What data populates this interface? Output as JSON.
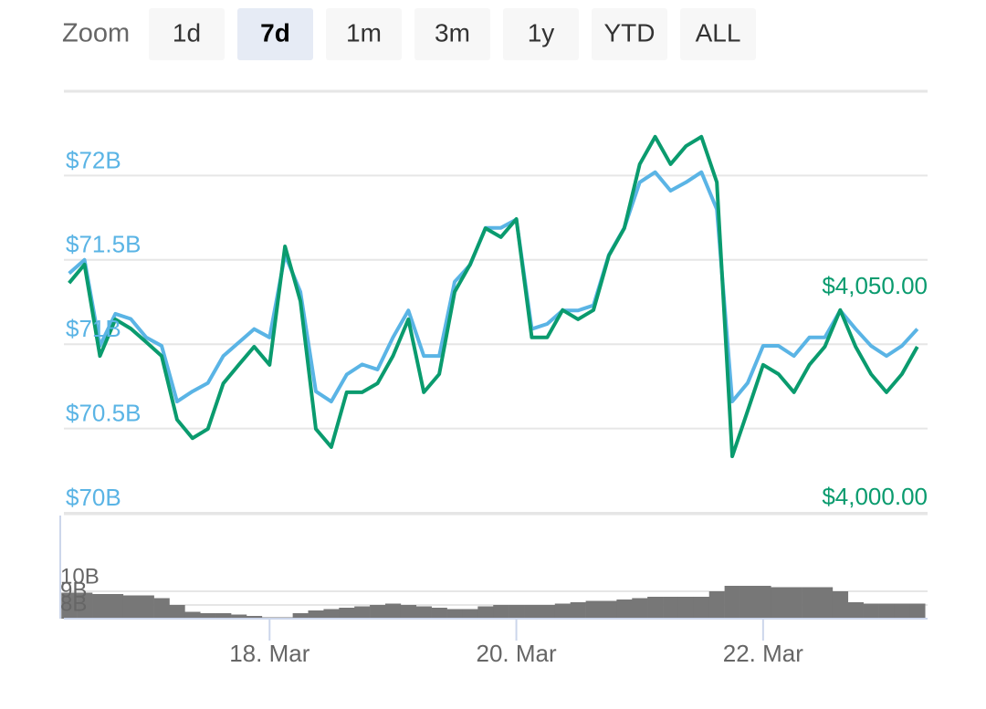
{
  "zoom": {
    "label": "Zoom",
    "buttons": [
      "1d",
      "7d",
      "1m",
      "3m",
      "1y",
      "YTD",
      "ALL"
    ],
    "selected": 1
  },
  "chart_data": [
    {
      "type": "line",
      "x": [
        16.375,
        16.5,
        16.625,
        16.75,
        16.875,
        17,
        17.125,
        17.25,
        17.375,
        17.5,
        17.625,
        17.75,
        17.875,
        18,
        18.125,
        18.25,
        18.375,
        18.5,
        18.625,
        18.75,
        18.875,
        19,
        19.125,
        19.25,
        19.375,
        19.5,
        19.625,
        19.75,
        19.875,
        20,
        20.125,
        20.25,
        20.375,
        20.5,
        20.625,
        20.75,
        20.875,
        21,
        21.125,
        21.25,
        21.375,
        21.5,
        21.625,
        21.75,
        21.875,
        22,
        22.125,
        22.25,
        22.375,
        22.5,
        22.625,
        22.75,
        22.875,
        23,
        23.125,
        23.25
      ],
      "xlim": [
        16.333,
        23.333
      ],
      "ylim": [
        70,
        72.5
      ],
      "yticks": [
        {
          "value": 70,
          "label": "$70B"
        },
        {
          "value": 70.5,
          "label": "$70.5B"
        },
        {
          "value": 71,
          "label": "$71B"
        },
        {
          "value": 71.5,
          "label": "$71.5B"
        },
        {
          "value": 72,
          "label": "$72B"
        }
      ],
      "y2lim": [
        4000,
        4100
      ],
      "y2ticks": [
        {
          "value": 4000,
          "label": "$4,000.00"
        },
        {
          "value": 4050,
          "label": "$4,050.00"
        }
      ],
      "grid": true,
      "series": [
        {
          "color": "#5ab4e5",
          "axis": "y",
          "values": [
            71.42,
            71.5,
            70.99,
            71.18,
            71.15,
            71.04,
            70.99,
            70.66,
            70.72,
            70.77,
            70.93,
            71.01,
            71.09,
            71.04,
            71.53,
            71.31,
            70.72,
            70.66,
            70.82,
            70.88,
            70.85,
            71.04,
            71.2,
            70.93,
            70.93,
            71.37,
            71.47,
            71.69,
            71.69,
            71.74,
            71.09,
            71.12,
            71.2,
            71.2,
            71.23,
            71.53,
            71.69,
            71.96,
            72.02,
            71.91,
            71.96,
            72.02,
            71.8,
            70.66,
            70.77,
            70.99,
            70.99,
            70.93,
            71.04,
            71.04,
            71.2,
            71.09,
            70.99,
            70.93,
            70.99,
            71.09
          ]
        },
        {
          "color": "#0a9b6e",
          "axis": "y2",
          "values": [
            4054.5,
            4058.9,
            4037.2,
            4045.9,
            4043.7,
            4040.5,
            4037.2,
            4022.1,
            4017.7,
            4019.9,
            4030.7,
            4035.1,
            4039.4,
            4035.1,
            4063.2,
            4050.2,
            4019.9,
            4015.6,
            4028.6,
            4028.6,
            4030.7,
            4037.2,
            4045.9,
            4028.6,
            4032.9,
            4052.4,
            4058.9,
            4067.5,
            4065.4,
            4069.7,
            4041.6,
            4041.6,
            4048.1,
            4045.9,
            4048.1,
            4061.0,
            4067.5,
            4082.7,
            4089.2,
            4082.7,
            4087.0,
            4089.2,
            4078.4,
            4013.4,
            4024.2,
            4035.1,
            4032.9,
            4028.6,
            4035.1,
            4039.4,
            4048.1,
            4039.4,
            4032.9,
            4028.6,
            4032.9,
            4039.4
          ]
        }
      ]
    },
    {
      "type": "bar",
      "x": [
        16.375,
        16.5,
        16.625,
        16.75,
        16.875,
        17,
        17.125,
        17.25,
        17.375,
        17.5,
        17.625,
        17.75,
        17.875,
        18,
        18.125,
        18.25,
        18.375,
        18.5,
        18.625,
        18.75,
        18.875,
        19,
        19.125,
        19.25,
        19.375,
        19.5,
        19.625,
        19.75,
        19.875,
        20,
        20.125,
        20.25,
        20.375,
        20.5,
        20.625,
        20.75,
        20.875,
        21,
        21.125,
        21.25,
        21.375,
        21.5,
        21.625,
        21.75,
        21.875,
        22,
        22.125,
        22.25,
        22.375,
        22.5,
        22.625,
        22.75,
        22.875,
        23,
        23.125,
        23.25
      ],
      "values": [
        9.9,
        9.9,
        9.8,
        9.8,
        9.7,
        9.7,
        9.5,
        9.0,
        8.5,
        8.4,
        8.4,
        8.3,
        8.2,
        8.1,
        8.1,
        8.4,
        8.6,
        8.7,
        8.8,
        8.9,
        9.0,
        9.1,
        9.0,
        8.9,
        8.8,
        8.7,
        8.7,
        8.9,
        9.0,
        9.0,
        9.0,
        9.0,
        9.1,
        9.2,
        9.3,
        9.3,
        9.4,
        9.5,
        9.6,
        9.6,
        9.6,
        9.6,
        10.0,
        10.4,
        10.4,
        10.4,
        10.3,
        10.3,
        10.3,
        10.3,
        10.0,
        9.2,
        9.1,
        9.1,
        9.1,
        9.1
      ],
      "color": "#777777",
      "xlim": [
        16.333,
        23.333
      ],
      "ylim": [
        8,
        15.5
      ],
      "yticks": [
        {
          "value": 8,
          "label": "8B"
        },
        {
          "value": 9,
          "label": "9B"
        },
        {
          "value": 10,
          "label": "10B"
        }
      ],
      "xticks": [
        {
          "value": 18,
          "label": "18. Mar"
        },
        {
          "value": 20,
          "label": "20. Mar"
        },
        {
          "value": 22,
          "label": "22. Mar"
        }
      ],
      "grid": true
    }
  ]
}
